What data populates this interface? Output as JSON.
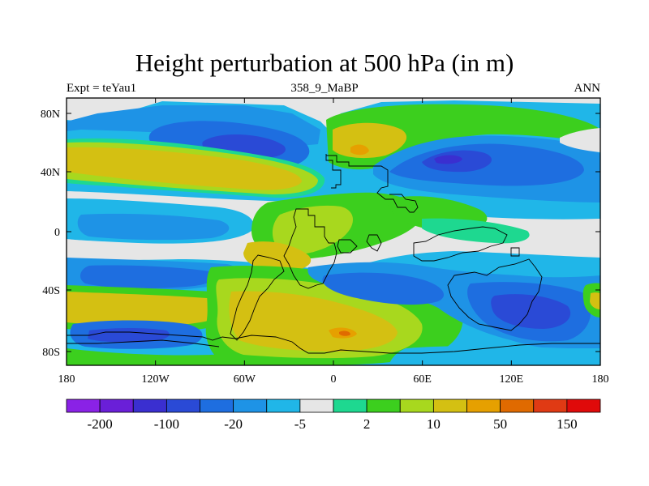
{
  "title": "Height perturbation at 500 hPa (in m)",
  "subtitle_left": "Expt = teYau1",
  "subtitle_center": "358_9_MaBP",
  "subtitle_right": "ANN",
  "y_ticks": [
    "80N",
    "40N",
    "0",
    "40S",
    "80S"
  ],
  "x_ticks": [
    "180",
    "120W",
    "60W",
    "0",
    "60E",
    "120E",
    "180"
  ],
  "colorbar": {
    "colors": [
      "#8a22e6",
      "#6a1fd8",
      "#3a2fd0",
      "#2a4ad6",
      "#1e6ee0",
      "#1e93e6",
      "#20b6e8",
      "#e6e6e6",
      "#1ed890",
      "#3ccf1e",
      "#a8d81e",
      "#d4c012",
      "#e6a000",
      "#e06a00",
      "#e03a14",
      "#e00a0a"
    ],
    "labels": [
      "-200",
      "-100",
      "-20",
      "-5",
      "2",
      "10",
      "50",
      "150"
    ]
  },
  "palette": {
    "deep_blue": "#2a4ad6",
    "mid_blue": "#1e6ee0",
    "light_blue": "#1e93e6",
    "cyan": "#20b6e8",
    "neutral": "#e6e6e6",
    "teal": "#1ed890",
    "green": "#3ccf1e",
    "yellow_green": "#a8d81e",
    "gold": "#d4c012",
    "orange": "#e6a000",
    "dark_orange": "#e06a00"
  }
}
